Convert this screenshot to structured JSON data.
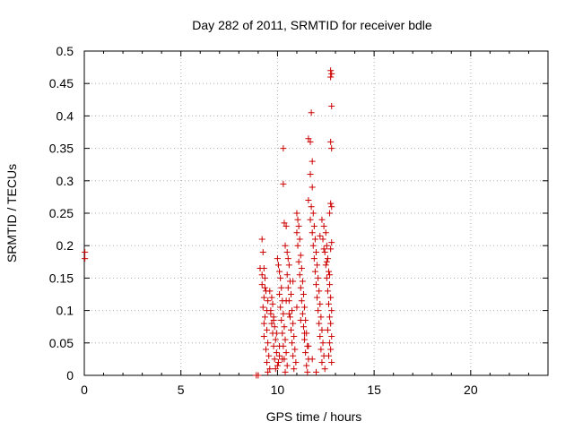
{
  "chart_data": {
    "type": "scatter",
    "title": "Day 282 of 2011, SRMTID for receiver bdle",
    "xlabel": "GPS time / hours",
    "ylabel": "SRMTID / TECUs",
    "xlim": [
      0,
      24
    ],
    "ylim": [
      0,
      0.5
    ],
    "x_ticks": [
      0,
      5,
      10,
      15,
      20
    ],
    "x_tick_labels": [
      "0",
      "5",
      "10",
      "15",
      "20"
    ],
    "y_ticks": [
      0,
      0.05,
      0.1,
      0.15,
      0.2,
      0.25,
      0.3,
      0.35,
      0.4,
      0.45,
      0.5
    ],
    "y_tick_labels": [
      "0",
      "0.05",
      "0.1",
      "0.15",
      "0.2",
      "0.25",
      "0.3",
      "0.35",
      "0.4",
      "0.45",
      "0.5"
    ],
    "grid": true,
    "marker": "+",
    "color": "#cc0000",
    "series": [
      {
        "name": "SRMTID",
        "points": [
          [
            0.03,
            0.19
          ],
          [
            0.03,
            0.18
          ],
          [
            8.9,
            0.0
          ],
          [
            9.0,
            0.0
          ],
          [
            9.2,
            0.21
          ],
          [
            9.25,
            0.19
          ],
          [
            9.3,
            0.165
          ],
          [
            9.35,
            0.15
          ],
          [
            9.2,
            0.14
          ],
          [
            9.4,
            0.13
          ],
          [
            9.3,
            0.12
          ],
          [
            9.25,
            0.105
          ],
          [
            9.45,
            0.1
          ],
          [
            9.35,
            0.09
          ],
          [
            9.3,
            0.08
          ],
          [
            9.45,
            0.07
          ],
          [
            9.3,
            0.06
          ],
          [
            9.5,
            0.05
          ],
          [
            9.4,
            0.04
          ],
          [
            9.55,
            0.03
          ],
          [
            9.45,
            0.02
          ],
          [
            9.6,
            0.01
          ],
          [
            9.5,
            0.005
          ],
          [
            9.6,
            0.13
          ],
          [
            9.7,
            0.12
          ],
          [
            9.75,
            0.11
          ],
          [
            9.65,
            0.1
          ],
          [
            9.8,
            0.09
          ],
          [
            9.7,
            0.08
          ],
          [
            9.85,
            0.075
          ],
          [
            9.75,
            0.065
          ],
          [
            9.9,
            0.055
          ],
          [
            9.8,
            0.045
          ],
          [
            9.95,
            0.035
          ],
          [
            9.85,
            0.025
          ],
          [
            10.0,
            0.015
          ],
          [
            9.9,
            0.01
          ],
          [
            10.05,
            0.02
          ],
          [
            10.1,
            0.03
          ],
          [
            10.0,
            0.18
          ],
          [
            10.05,
            0.17
          ],
          [
            10.1,
            0.16
          ],
          [
            10.15,
            0.15
          ],
          [
            10.2,
            0.135
          ],
          [
            10.1,
            0.125
          ],
          [
            10.25,
            0.115
          ],
          [
            10.15,
            0.105
          ],
          [
            10.3,
            0.095
          ],
          [
            10.2,
            0.085
          ],
          [
            10.35,
            0.075
          ],
          [
            10.25,
            0.065
          ],
          [
            10.4,
            0.055
          ],
          [
            10.3,
            0.045
          ],
          [
            10.45,
            0.035
          ],
          [
            10.35,
            0.025
          ],
          [
            10.5,
            0.015
          ],
          [
            10.4,
            0.005
          ],
          [
            10.3,
            0.35
          ],
          [
            10.3,
            0.295
          ],
          [
            10.35,
            0.235
          ],
          [
            10.45,
            0.23
          ],
          [
            10.4,
            0.2
          ],
          [
            10.5,
            0.19
          ],
          [
            10.55,
            0.18
          ],
          [
            10.6,
            0.17
          ],
          [
            10.5,
            0.155
          ],
          [
            10.65,
            0.145
          ],
          [
            10.55,
            0.135
          ],
          [
            10.7,
            0.125
          ],
          [
            10.6,
            0.115
          ],
          [
            10.75,
            0.1
          ],
          [
            10.65,
            0.09
          ],
          [
            10.8,
            0.08
          ],
          [
            10.7,
            0.07
          ],
          [
            10.85,
            0.06
          ],
          [
            10.75,
            0.05
          ],
          [
            10.9,
            0.04
          ],
          [
            10.8,
            0.03
          ],
          [
            10.95,
            0.02
          ],
          [
            10.85,
            0.01
          ],
          [
            11.0,
            0.25
          ],
          [
            11.05,
            0.24
          ],
          [
            11.1,
            0.23
          ],
          [
            11.0,
            0.22
          ],
          [
            11.15,
            0.21
          ],
          [
            11.05,
            0.2
          ],
          [
            11.2,
            0.185
          ],
          [
            11.1,
            0.175
          ],
          [
            11.25,
            0.165
          ],
          [
            11.15,
            0.155
          ],
          [
            11.3,
            0.145
          ],
          [
            11.2,
            0.135
          ],
          [
            11.35,
            0.125
          ],
          [
            11.25,
            0.115
          ],
          [
            11.4,
            0.105
          ],
          [
            11.3,
            0.095
          ],
          [
            11.45,
            0.085
          ],
          [
            11.35,
            0.075
          ],
          [
            11.5,
            0.065
          ],
          [
            11.4,
            0.055
          ],
          [
            11.55,
            0.045
          ],
          [
            11.45,
            0.035
          ],
          [
            11.6,
            0.025
          ],
          [
            11.5,
            0.015
          ],
          [
            11.55,
            0.005
          ],
          [
            11.6,
            0.365
          ],
          [
            11.7,
            0.36
          ],
          [
            11.75,
            0.405
          ],
          [
            11.8,
            0.33
          ],
          [
            11.7,
            0.31
          ],
          [
            11.8,
            0.29
          ],
          [
            11.6,
            0.27
          ],
          [
            11.75,
            0.26
          ],
          [
            11.85,
            0.25
          ],
          [
            11.7,
            0.24
          ],
          [
            11.9,
            0.23
          ],
          [
            11.8,
            0.22
          ],
          [
            11.95,
            0.21
          ],
          [
            11.85,
            0.2
          ],
          [
            12.0,
            0.19
          ],
          [
            11.9,
            0.18
          ],
          [
            12.05,
            0.17
          ],
          [
            11.95,
            0.16
          ],
          [
            12.1,
            0.15
          ],
          [
            12.0,
            0.14
          ],
          [
            12.15,
            0.13
          ],
          [
            12.05,
            0.12
          ],
          [
            12.2,
            0.11
          ],
          [
            12.1,
            0.1
          ],
          [
            12.25,
            0.09
          ],
          [
            12.15,
            0.08
          ],
          [
            12.3,
            0.07
          ],
          [
            12.2,
            0.06
          ],
          [
            12.35,
            0.05
          ],
          [
            12.25,
            0.04
          ],
          [
            12.4,
            0.03
          ],
          [
            12.3,
            0.02
          ],
          [
            12.45,
            0.01
          ],
          [
            12.3,
            0.24
          ],
          [
            12.4,
            0.23
          ],
          [
            12.5,
            0.22
          ],
          [
            12.35,
            0.21
          ],
          [
            12.55,
            0.2
          ],
          [
            12.45,
            0.19
          ],
          [
            12.6,
            0.18
          ],
          [
            12.5,
            0.17
          ],
          [
            12.65,
            0.16
          ],
          [
            12.55,
            0.15
          ],
          [
            12.7,
            0.14
          ],
          [
            12.6,
            0.13
          ],
          [
            12.75,
            0.12
          ],
          [
            12.65,
            0.11
          ],
          [
            12.8,
            0.1
          ],
          [
            12.7,
            0.09
          ],
          [
            12.75,
            0.08
          ],
          [
            12.6,
            0.07
          ],
          [
            12.8,
            0.06
          ],
          [
            12.7,
            0.05
          ],
          [
            12.75,
            0.04
          ],
          [
            12.65,
            0.03
          ],
          [
            12.8,
            0.02
          ],
          [
            12.75,
            0.47
          ],
          [
            12.8,
            0.465
          ],
          [
            12.75,
            0.46
          ],
          [
            12.8,
            0.415
          ],
          [
            12.75,
            0.36
          ],
          [
            12.8,
            0.35
          ],
          [
            12.75,
            0.265
          ],
          [
            12.8,
            0.26
          ],
          [
            12.7,
            0.25
          ],
          [
            12.8,
            0.205
          ],
          [
            12.75,
            0.195
          ],
          [
            9.1,
            0.165
          ],
          [
            9.2,
            0.155
          ],
          [
            9.35,
            0.135
          ],
          [
            9.5,
            0.115
          ],
          [
            9.65,
            0.095
          ],
          [
            9.8,
            0.085
          ],
          [
            9.95,
            0.065
          ],
          [
            10.1,
            0.045
          ],
          [
            10.25,
            0.025
          ],
          [
            10.45,
            0.115
          ],
          [
            10.6,
            0.095
          ],
          [
            10.8,
            0.145
          ],
          [
            11.0,
            0.105
          ],
          [
            11.2,
            0.085
          ],
          [
            11.4,
            0.065
          ],
          [
            11.6,
            0.045
          ],
          [
            11.8,
            0.025
          ],
          [
            12.0,
            0.005
          ],
          [
            12.2,
            0.215
          ],
          [
            12.4,
            0.195
          ],
          [
            12.55,
            0.175
          ],
          [
            12.7,
            0.155
          ]
        ]
      }
    ]
  }
}
